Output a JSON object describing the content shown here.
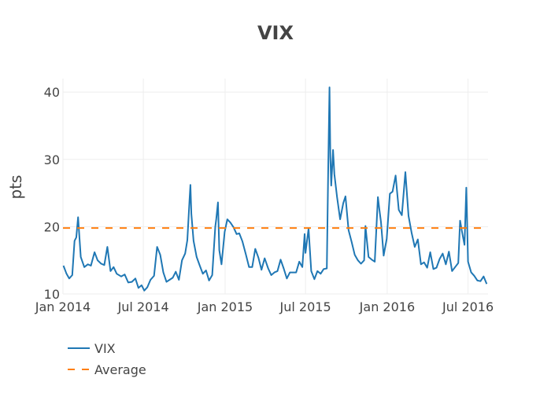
{
  "chart_data": {
    "type": "line",
    "title": "VIX",
    "xlabel": "",
    "ylabel": "pts",
    "x_range": [
      "2014-01-01",
      "2016-08-15"
    ],
    "ylim": [
      10,
      42
    ],
    "y_ticks": [
      10,
      20,
      30,
      40
    ],
    "x_ticks": [
      {
        "label": "Jan 2014",
        "date": "2014-01-01"
      },
      {
        "label": "Jul 2014",
        "date": "2014-07-01"
      },
      {
        "label": "Jan 2015",
        "date": "2015-01-01"
      },
      {
        "label": "Jul 2015",
        "date": "2015-07-01"
      },
      {
        "label": "Jan 2016",
        "date": "2016-01-01"
      },
      {
        "label": "Jul 2016",
        "date": "2016-07-01"
      }
    ],
    "grid": true,
    "legend_position": "bottom-left",
    "series": [
      {
        "name": "VIX",
        "color": "#1f77b4",
        "style": "solid",
        "points": [
          [
            "2014-01-02",
            14.2
          ],
          [
            "2014-01-09",
            13.0
          ],
          [
            "2014-01-15",
            12.3
          ],
          [
            "2014-01-22",
            12.8
          ],
          [
            "2014-01-27",
            17.9
          ],
          [
            "2014-01-31",
            18.4
          ],
          [
            "2014-02-04",
            21.4
          ],
          [
            "2014-02-10",
            15.5
          ],
          [
            "2014-02-18",
            14.0
          ],
          [
            "2014-02-26",
            14.4
          ],
          [
            "2014-03-05",
            14.2
          ],
          [
            "2014-03-13",
            16.2
          ],
          [
            "2014-03-20",
            15.0
          ],
          [
            "2014-03-28",
            14.5
          ],
          [
            "2014-04-04",
            14.3
          ],
          [
            "2014-04-11",
            17.0
          ],
          [
            "2014-04-18",
            13.4
          ],
          [
            "2014-04-25",
            14.0
          ],
          [
            "2014-05-02",
            13.0
          ],
          [
            "2014-05-12",
            12.6
          ],
          [
            "2014-05-20",
            12.9
          ],
          [
            "2014-05-28",
            11.7
          ],
          [
            "2014-06-05",
            11.8
          ],
          [
            "2014-06-13",
            12.3
          ],
          [
            "2014-06-20",
            10.9
          ],
          [
            "2014-06-27",
            11.3
          ],
          [
            "2014-07-03",
            10.5
          ],
          [
            "2014-07-10",
            11.0
          ],
          [
            "2014-07-17",
            12.1
          ],
          [
            "2014-07-25",
            12.7
          ],
          [
            "2014-08-01",
            17.0
          ],
          [
            "2014-08-08",
            15.8
          ],
          [
            "2014-08-15",
            13.2
          ],
          [
            "2014-08-22",
            11.8
          ],
          [
            "2014-08-29",
            12.1
          ],
          [
            "2014-09-05",
            12.4
          ],
          [
            "2014-09-12",
            13.3
          ],
          [
            "2014-09-19",
            12.1
          ],
          [
            "2014-09-26",
            15.0
          ],
          [
            "2014-10-03",
            16.0
          ],
          [
            "2014-10-08",
            18.0
          ],
          [
            "2014-10-13",
            24.0
          ],
          [
            "2014-10-15",
            26.2
          ],
          [
            "2014-10-17",
            21.9
          ],
          [
            "2014-10-22",
            17.9
          ],
          [
            "2014-10-29",
            15.5
          ],
          [
            "2014-11-05",
            14.2
          ],
          [
            "2014-11-12",
            13.0
          ],
          [
            "2014-11-19",
            13.5
          ],
          [
            "2014-11-26",
            12.0
          ],
          [
            "2014-12-03",
            12.8
          ],
          [
            "2014-12-10",
            20.0
          ],
          [
            "2014-12-12",
            21.1
          ],
          [
            "2014-12-16",
            23.6
          ],
          [
            "2014-12-19",
            16.5
          ],
          [
            "2014-12-24",
            14.4
          ],
          [
            "2014-12-31",
            19.2
          ],
          [
            "2015-01-06",
            21.1
          ],
          [
            "2015-01-13",
            20.6
          ],
          [
            "2015-01-20",
            19.9
          ],
          [
            "2015-01-27",
            18.9
          ],
          [
            "2015-02-02",
            19.0
          ],
          [
            "2015-02-09",
            17.8
          ],
          [
            "2015-02-17",
            15.8
          ],
          [
            "2015-02-24",
            14.0
          ],
          [
            "2015-03-03",
            14.0
          ],
          [
            "2015-03-10",
            16.7
          ],
          [
            "2015-03-17",
            15.4
          ],
          [
            "2015-03-24",
            13.6
          ],
          [
            "2015-03-31",
            15.3
          ],
          [
            "2015-04-08",
            13.8
          ],
          [
            "2015-04-15",
            12.8
          ],
          [
            "2015-04-22",
            13.2
          ],
          [
            "2015-04-29",
            13.4
          ],
          [
            "2015-05-06",
            15.1
          ],
          [
            "2015-05-13",
            13.8
          ],
          [
            "2015-05-20",
            12.3
          ],
          [
            "2015-05-27",
            13.2
          ],
          [
            "2015-06-03",
            13.2
          ],
          [
            "2015-06-10",
            13.2
          ],
          [
            "2015-06-17",
            14.8
          ],
          [
            "2015-06-24",
            14.0
          ],
          [
            "2015-06-29",
            18.9
          ],
          [
            "2015-07-01",
            16.1
          ],
          [
            "2015-07-08",
            19.7
          ],
          [
            "2015-07-14",
            13.4
          ],
          [
            "2015-07-21",
            12.2
          ],
          [
            "2015-07-28",
            13.4
          ],
          [
            "2015-08-04",
            13.0
          ],
          [
            "2015-08-11",
            13.7
          ],
          [
            "2015-08-18",
            13.8
          ],
          [
            "2015-08-21",
            28.0
          ],
          [
            "2015-08-24",
            40.7
          ],
          [
            "2015-08-26",
            30.3
          ],
          [
            "2015-08-28",
            26.1
          ],
          [
            "2015-09-01",
            31.4
          ],
          [
            "2015-09-04",
            27.8
          ],
          [
            "2015-09-10",
            24.4
          ],
          [
            "2015-09-17",
            21.1
          ],
          [
            "2015-09-24",
            23.5
          ],
          [
            "2015-09-29",
            24.5
          ],
          [
            "2015-10-06",
            19.5
          ],
          [
            "2015-10-13",
            17.7
          ],
          [
            "2015-10-20",
            15.8
          ],
          [
            "2015-10-27",
            15.0
          ],
          [
            "2015-11-03",
            14.5
          ],
          [
            "2015-11-10",
            15.0
          ],
          [
            "2015-11-13",
            20.1
          ],
          [
            "2015-11-20",
            15.5
          ],
          [
            "2015-11-27",
            15.1
          ],
          [
            "2015-12-04",
            14.8
          ],
          [
            "2015-12-11",
            24.4
          ],
          [
            "2015-12-14",
            22.7
          ],
          [
            "2015-12-18",
            20.7
          ],
          [
            "2015-12-24",
            15.7
          ],
          [
            "2015-12-31",
            18.2
          ],
          [
            "2016-01-07",
            24.9
          ],
          [
            "2016-01-13",
            25.2
          ],
          [
            "2016-01-20",
            27.6
          ],
          [
            "2016-01-27",
            22.5
          ],
          [
            "2016-02-03",
            21.7
          ],
          [
            "2016-02-11",
            28.1
          ],
          [
            "2016-02-18",
            21.6
          ],
          [
            "2016-02-25",
            19.1
          ],
          [
            "2016-03-03",
            17.0
          ],
          [
            "2016-03-10",
            18.1
          ],
          [
            "2016-03-17",
            14.4
          ],
          [
            "2016-03-24",
            14.7
          ],
          [
            "2016-03-31",
            13.9
          ],
          [
            "2016-04-07",
            16.2
          ],
          [
            "2016-04-14",
            13.7
          ],
          [
            "2016-04-21",
            13.9
          ],
          [
            "2016-04-28",
            15.2
          ],
          [
            "2016-05-05",
            16.0
          ],
          [
            "2016-05-12",
            14.4
          ],
          [
            "2016-05-19",
            16.3
          ],
          [
            "2016-05-26",
            13.4
          ],
          [
            "2016-06-02",
            14.0
          ],
          [
            "2016-06-09",
            14.6
          ],
          [
            "2016-06-13",
            20.9
          ],
          [
            "2016-06-17",
            19.4
          ],
          [
            "2016-06-23",
            17.3
          ],
          [
            "2016-06-27",
            25.8
          ],
          [
            "2016-07-01",
            14.8
          ],
          [
            "2016-07-08",
            13.2
          ],
          [
            "2016-07-15",
            12.7
          ],
          [
            "2016-07-22",
            12.0
          ],
          [
            "2016-07-29",
            11.9
          ],
          [
            "2016-08-05",
            12.6
          ],
          [
            "2016-08-12",
            11.5
          ]
        ]
      },
      {
        "name": "Average",
        "color": "#ff7f0e",
        "style": "dashed",
        "value": 19.8
      }
    ]
  }
}
